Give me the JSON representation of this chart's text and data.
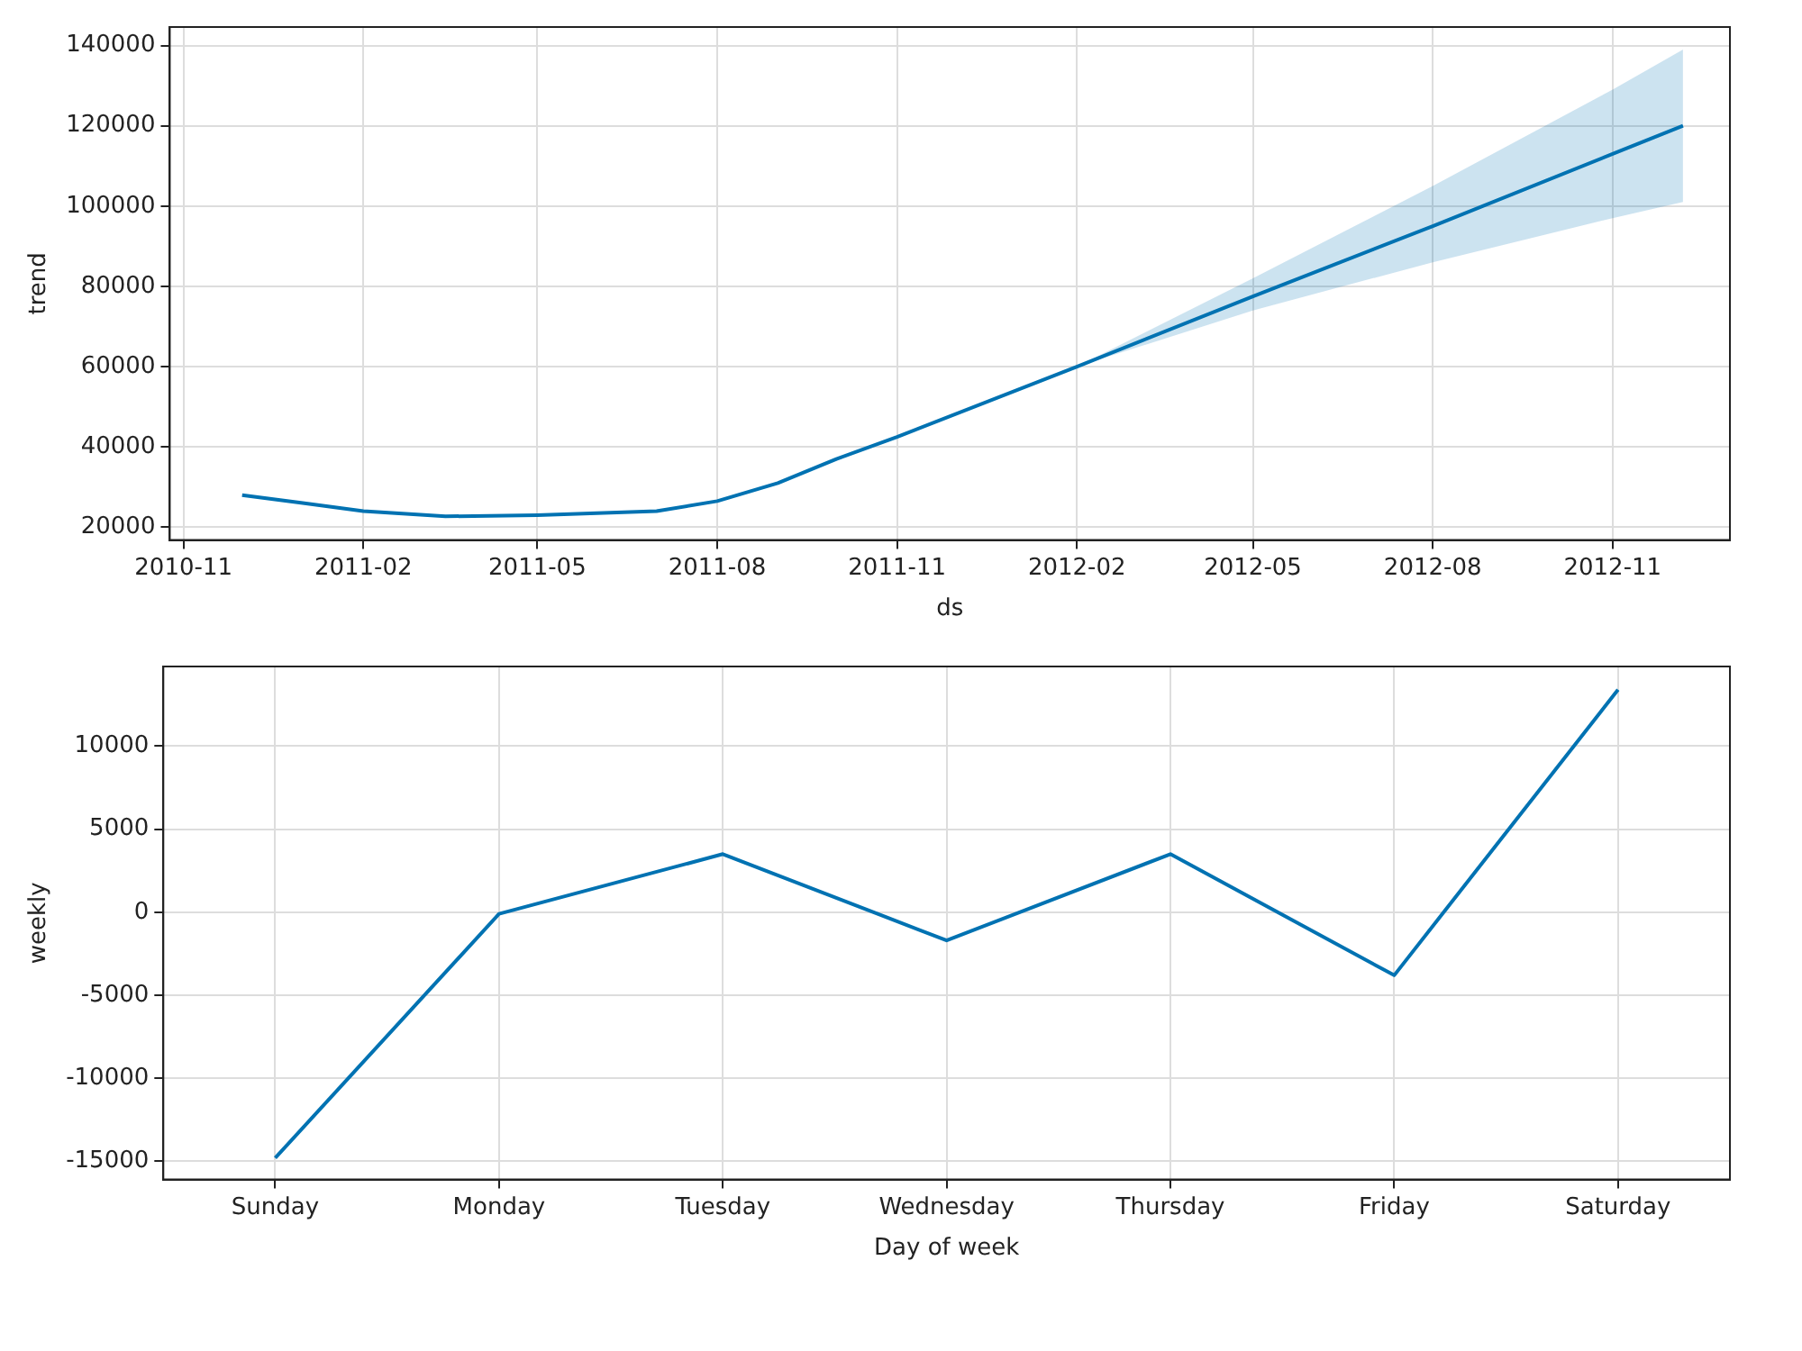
{
  "chart_data": [
    {
      "type": "line",
      "xlabel": "ds",
      "ylabel": "trend",
      "grid": true,
      "marker": "none",
      "line_style": "solid",
      "x": [
        "2010-12-01",
        "2011-01-01",
        "2011-02-01",
        "2011-03-15",
        "2011-05-01",
        "2011-07-01",
        "2011-08-01",
        "2011-09-01",
        "2011-10-01",
        "2011-11-01",
        "2012-02-01",
        "2012-05-01",
        "2012-08-01",
        "2012-11-01",
        "2012-12-07"
      ],
      "series": [
        {
          "color": "#0072b2",
          "values": [
            28000,
            26000,
            24000,
            22700,
            23000,
            24000,
            26500,
            31000,
            37000,
            42500,
            60000,
            77500,
            95000,
            113000,
            120000
          ],
          "lower": [
            28000,
            26000,
            24000,
            22700,
            23000,
            24000,
            26500,
            31000,
            37000,
            42500,
            60000,
            74000,
            86000,
            97000,
            101000
          ],
          "upper": [
            28000,
            26000,
            24000,
            22700,
            23000,
            24000,
            26500,
            31000,
            37000,
            42500,
            60000,
            82000,
            105000,
            129000,
            139000
          ]
        }
      ],
      "xlim": [
        "2010-10-25",
        "2012-12-31"
      ],
      "xticks": [
        "2010-11",
        "2011-02",
        "2011-05",
        "2011-08",
        "2011-11",
        "2012-02",
        "2012-05",
        "2012-08",
        "2012-11"
      ],
      "ylim": [
        16800,
        144600
      ],
      "yticks": [
        20000,
        40000,
        60000,
        80000,
        100000,
        120000,
        140000
      ]
    },
    {
      "type": "line",
      "xlabel": "Day of week",
      "ylabel": "weekly",
      "grid": true,
      "marker": "none",
      "line_style": "solid",
      "categories": [
        "Sunday",
        "Monday",
        "Tuesday",
        "Wednesday",
        "Thursday",
        "Friday",
        "Saturday"
      ],
      "series": [
        {
          "color": "#0072b2",
          "values": [
            -14800,
            -100,
            3500,
            -1700,
            3500,
            -3800,
            13400
          ]
        }
      ],
      "ylim": [
        -16100,
        14800
      ],
      "yticks": [
        -15000,
        -10000,
        -5000,
        0,
        5000,
        10000
      ]
    }
  ]
}
